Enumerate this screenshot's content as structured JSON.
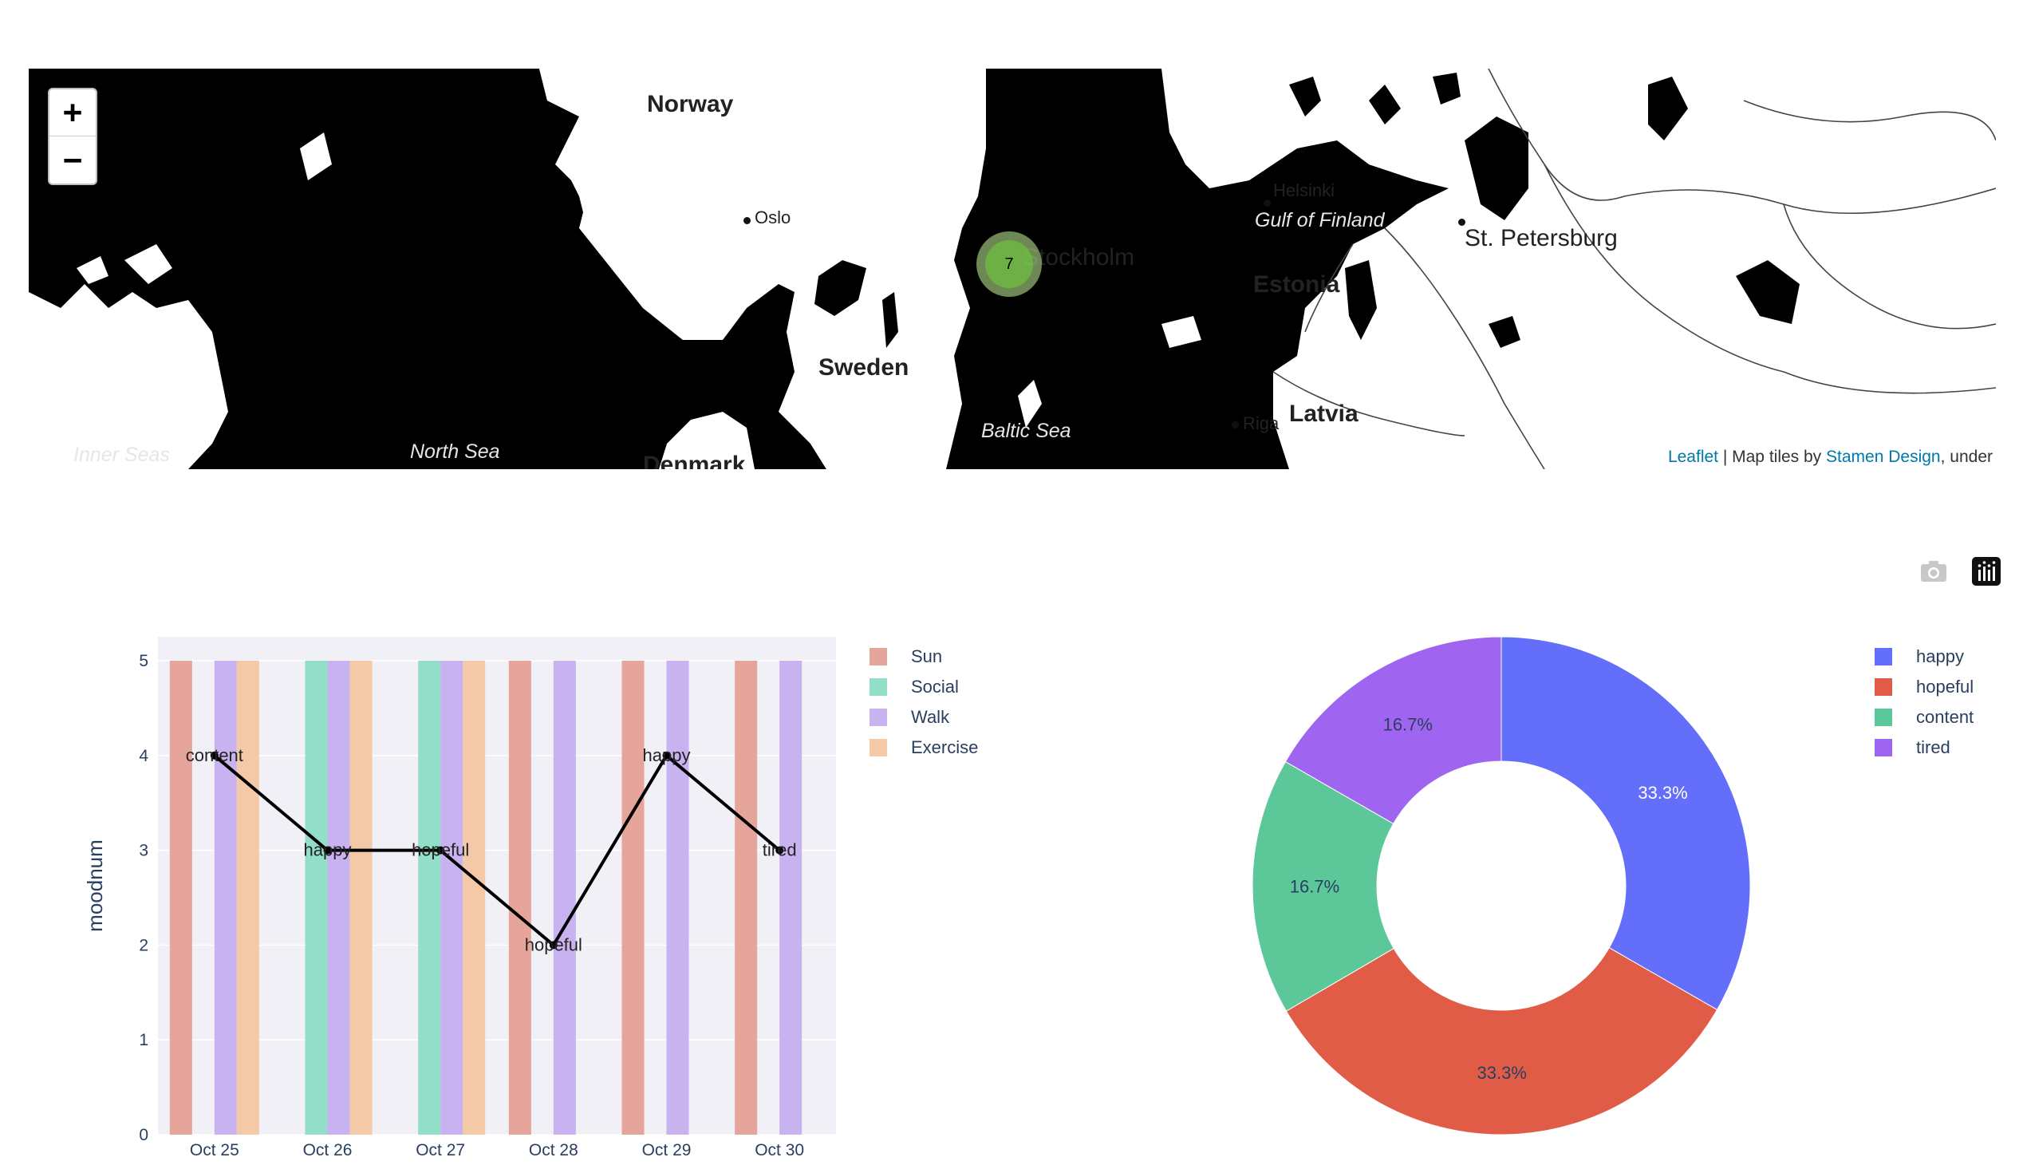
{
  "map": {
    "zoom_in": "+",
    "zoom_out": "−",
    "countries": [
      "Norway",
      "Sweden",
      "Estonia",
      "Latvia",
      "Denmark"
    ],
    "seas": [
      "Inner Seas",
      "North Sea",
      "Baltic Sea",
      "Gulf of Finland"
    ],
    "cities": [
      "Oslo",
      "Stockholm",
      "Helsinki",
      "St. Petersburg",
      "Riga"
    ],
    "cluster_count": "7",
    "attribution": {
      "leaflet": "Leaflet",
      "middle": " | Map tiles by ",
      "stamen": "Stamen Design",
      "tail": ", under"
    }
  },
  "toolbar": {
    "icons": [
      "camera-icon",
      "plotly-logo-icon"
    ]
  },
  "chart_data": [
    {
      "type": "bar",
      "categories": [
        "Oct 25",
        "Oct 26",
        "Oct 27",
        "Oct 28",
        "Oct 29",
        "Oct 30"
      ],
      "ylabel": "moodnum",
      "ylim": [
        0,
        5
      ],
      "yticks": [
        "0",
        "1",
        "2",
        "3",
        "4",
        "5"
      ],
      "series": [
        {
          "name": "Sun",
          "color": "#e6a59b",
          "values": [
            5,
            0,
            0,
            5,
            5,
            5
          ]
        },
        {
          "name": "Social",
          "color": "#93dec8",
          "values": [
            0,
            5,
            5,
            0,
            0,
            0
          ]
        },
        {
          "name": "Walk",
          "color": "#c8b2f0",
          "values": [
            5,
            5,
            5,
            5,
            5,
            5
          ]
        },
        {
          "name": "Exercise",
          "color": "#f4c9a7",
          "values": [
            5,
            5,
            5,
            0,
            0,
            0
          ]
        }
      ],
      "line": {
        "values": [
          4,
          3,
          3,
          2,
          4,
          3
        ],
        "labels": [
          "content",
          "happy",
          "hopeful",
          "hopeful",
          "happy",
          "tired"
        ]
      },
      "legend_position": "top-right"
    },
    {
      "type": "pie",
      "hole": 0.5,
      "labels": [
        "happy",
        "hopeful",
        "content",
        "tired"
      ],
      "values": [
        33.3,
        33.3,
        16.7,
        16.7
      ],
      "text": [
        "33.3%",
        "33.3%",
        "16.7%",
        "16.7%"
      ],
      "colors": [
        "#636efa",
        "#e05c46",
        "#5cc899",
        "#a065f0"
      ],
      "legend_position": "top-right"
    }
  ]
}
